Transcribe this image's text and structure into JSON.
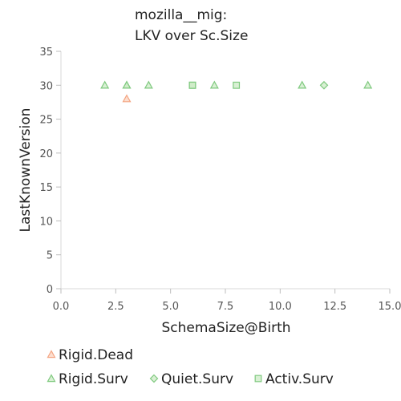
{
  "chart_data": {
    "type": "scatter",
    "title_line1": "mozilla__mig:",
    "title_line2": "LKV over Sc.Size",
    "xlabel": "SchemaSize@Birth",
    "ylabel": "LastKnownVersion",
    "xlim": [
      0,
      15
    ],
    "ylim": [
      0,
      35
    ],
    "x_ticks": [
      "0.0",
      "2.5",
      "5.0",
      "7.5",
      "10.0",
      "12.5",
      "15.0"
    ],
    "y_ticks": [
      "0",
      "5",
      "10",
      "15",
      "20",
      "25",
      "30",
      "35"
    ],
    "legend_position": "bottom",
    "series": [
      {
        "name": "Rigid.Dead",
        "marker": "triangle",
        "stroke": "#f4a582",
        "fill": "#fbd3bf",
        "points": [
          [
            3,
            28
          ]
        ]
      },
      {
        "name": "Rigid.Surv",
        "marker": "triangle",
        "stroke": "#7fc97f",
        "fill": "#ccebc5",
        "points": [
          [
            2,
            30
          ],
          [
            3,
            30
          ],
          [
            3,
            30
          ],
          [
            4,
            30
          ],
          [
            7,
            30
          ],
          [
            11,
            30
          ],
          [
            14,
            30
          ]
        ]
      },
      {
        "name": "Quiet.Surv",
        "marker": "diamond",
        "stroke": "#7fc97f",
        "fill": "#ccebc5",
        "points": [
          [
            12,
            30
          ]
        ]
      },
      {
        "name": "Activ.Surv",
        "marker": "square",
        "stroke": "#7fc97f",
        "fill": "#ccebc5",
        "points": [
          [
            6,
            30
          ],
          [
            6,
            30
          ],
          [
            8,
            30
          ]
        ]
      }
    ]
  }
}
